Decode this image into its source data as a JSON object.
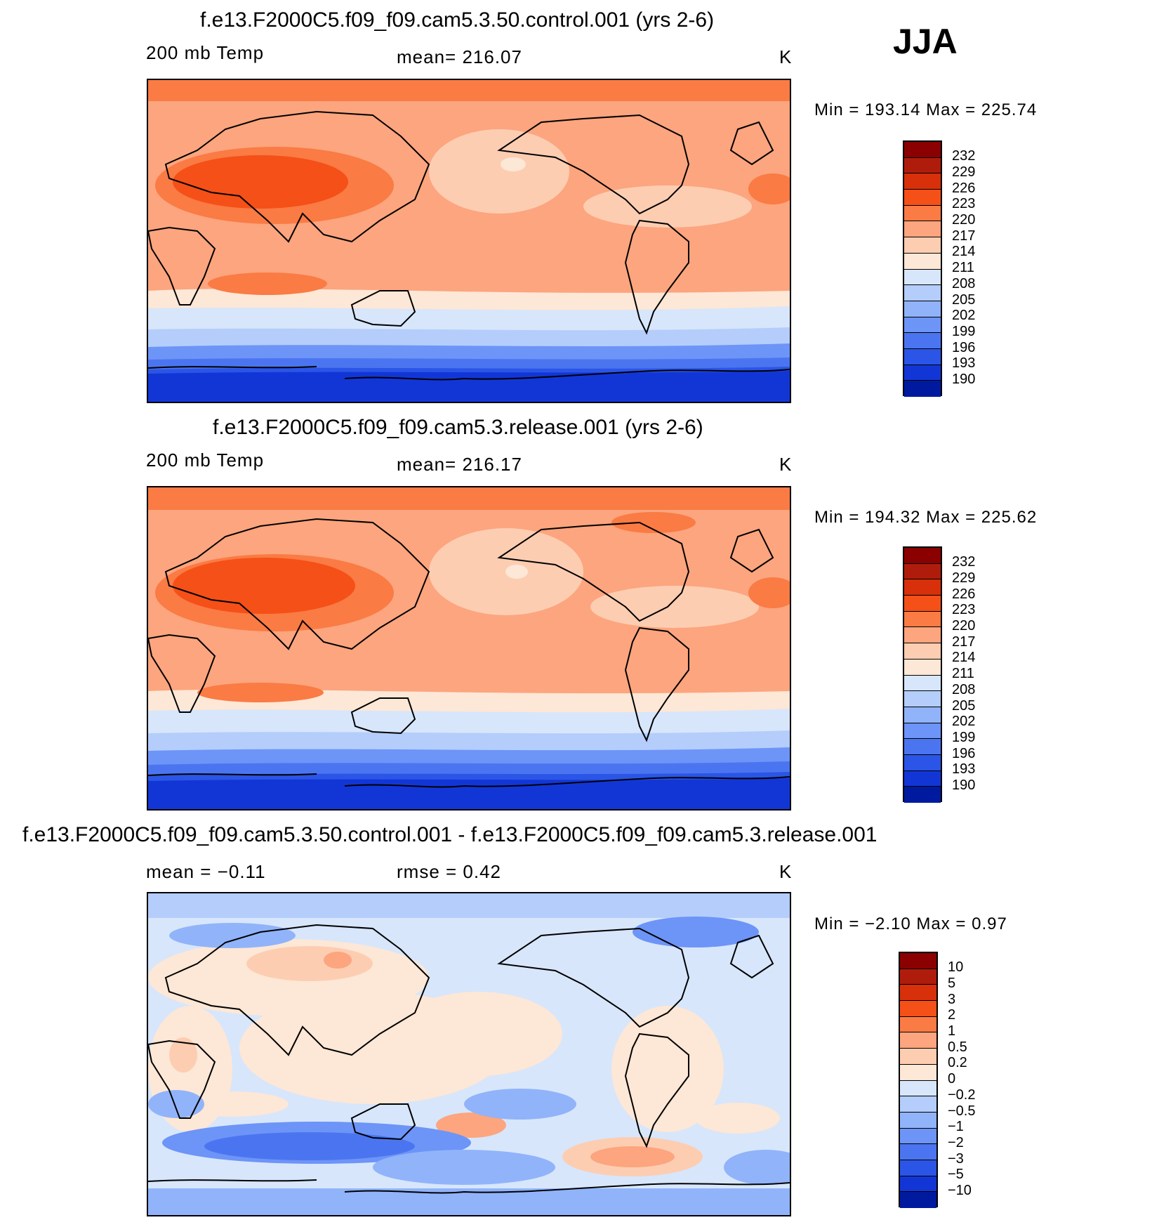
{
  "season": "JJA",
  "panels": [
    {
      "title": "f.e13.F2000C5.f09_f09.cam5.3.50.control.001 (yrs 2-6)",
      "field": "200 mb Temp",
      "mean_text": "mean=  216.07",
      "units": "K",
      "minmax_text": "Min  =  193.14  Max  =  225.74",
      "levels": [
        "232",
        "229",
        "226",
        "223",
        "220",
        "217",
        "214",
        "211",
        "208",
        "205",
        "202",
        "199",
        "196",
        "193",
        "190"
      ],
      "colors": [
        "#8b0000",
        "#b01c0c",
        "#d7300a",
        "#f55017",
        "#fa7b44",
        "#fca57e",
        "#fdcdb2",
        "#fde7d6",
        "#d7e6fb",
        "#b4cdfb",
        "#91b3fa",
        "#6d94f7",
        "#4b75f0",
        "#2b55e6",
        "#1236d6",
        "#001a9f"
      ]
    },
    {
      "title": "f.e13.F2000C5.f09_f09.cam5.3.release.001 (yrs 2-6)",
      "field": "200 mb Temp",
      "mean_text": "mean=  216.17",
      "units": "K",
      "minmax_text": "Min  =  194.32  Max  =  225.62",
      "levels": [
        "232",
        "229",
        "226",
        "223",
        "220",
        "217",
        "214",
        "211",
        "208",
        "205",
        "202",
        "199",
        "196",
        "193",
        "190"
      ],
      "colors": [
        "#8b0000",
        "#b01c0c",
        "#d7300a",
        "#f55017",
        "#fa7b44",
        "#fca57e",
        "#fdcdb2",
        "#fde7d6",
        "#d7e6fb",
        "#b4cdfb",
        "#91b3fa",
        "#6d94f7",
        "#4b75f0",
        "#2b55e6",
        "#1236d6",
        "#001a9f"
      ]
    },
    {
      "title": "f.e13.F2000C5.f09_f09.cam5.3.50.control.001 - f.e13.F2000C5.f09_f09.cam5.3.release.001",
      "mean_text": "mean  =    −0.11",
      "rmse_text": "rmse  =     0.42",
      "units": "K",
      "minmax_text": "Min  =    −2.10  Max  =      0.97",
      "levels": [
        "10",
        "5",
        "3",
        "2",
        "1",
        "0.5",
        "0.2",
        "0",
        "−0.2",
        "−0.5",
        "−1",
        "−2",
        "−3",
        "−5",
        "−10"
      ],
      "colors": [
        "#8b0000",
        "#b01c0c",
        "#d7300a",
        "#f55017",
        "#fa7b44",
        "#fca57e",
        "#fdcdb2",
        "#fde7d6",
        "#d7e6fb",
        "#b4cdfb",
        "#91b3fa",
        "#6d94f7",
        "#4b75f0",
        "#2b55e6",
        "#1236d6",
        "#001a9f"
      ]
    }
  ]
}
